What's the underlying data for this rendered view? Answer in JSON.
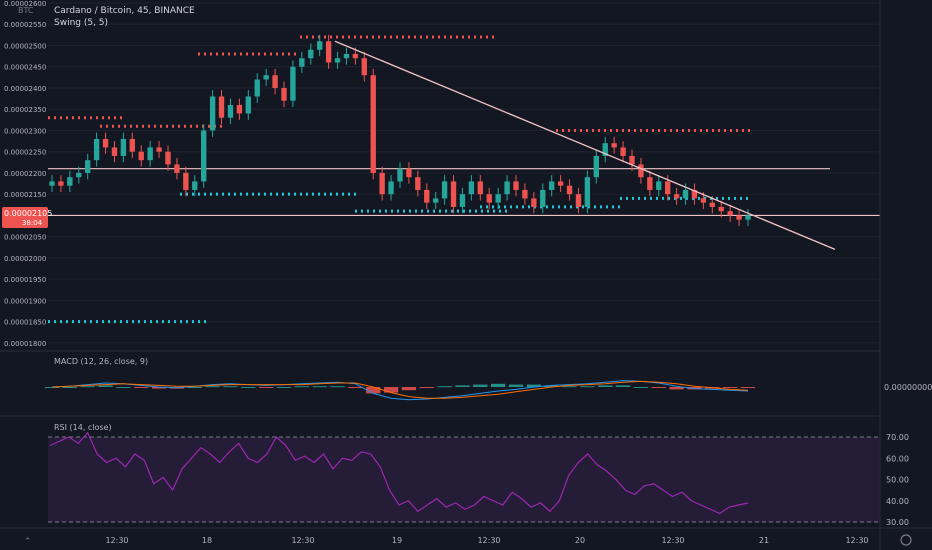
{
  "header": {
    "title": "Cardano / Bitcoin, 45, BINANCE",
    "indicator": "Swing (5, 5)",
    "currency": "BTC"
  },
  "price_panel": {
    "current_price": "0.00002105",
    "countdown": "38:04",
    "y_ticks": [
      "0.00002600",
      "0.00002550",
      "0.00002500",
      "0.00002450",
      "0.00002400",
      "0.00002350",
      "0.00002300",
      "0.00002250",
      "0.00002200",
      "0.00002150",
      "0.00002100",
      "0.00002050",
      "0.00002000",
      "0.00001950",
      "0.00001900",
      "0.00001850",
      "0.00001800"
    ]
  },
  "macd_panel": {
    "label": "MACD (12, 26, close, 9)",
    "value": "0.00000000"
  },
  "rsi_panel": {
    "label": "RSI (14, close)",
    "y_ticks": [
      "70.00",
      "60.00",
      "50.00",
      "40.00",
      "30.00"
    ]
  },
  "x_axis": {
    "ticks": [
      "12:30",
      "18",
      "12:30",
      "19",
      "12:30",
      "20",
      "12:30",
      "21",
      "12:30"
    ]
  },
  "colors": {
    "background": "#131722",
    "up": "#26a69a",
    "down": "#ef5350",
    "swing_high": "#ef5350",
    "swing_low": "#26c6da",
    "trendline": "#f0c4c4",
    "rsi": "#9c27b0",
    "rsi_band": "#2a1f3d",
    "macd": "#2196f3",
    "signal": "#ff6d00"
  },
  "chart_data": [
    {
      "type": "candlestick",
      "title": "Cardano / Bitcoin, 45, BINANCE",
      "ylim": [
        1.795e-05,
        2.6e-05
      ],
      "y_unit": "BTC",
      "closes": [
        2.18e-05,
        2.17e-05,
        2.19e-05,
        2.2e-05,
        2.23e-05,
        2.28e-05,
        2.26e-05,
        2.24e-05,
        2.28e-05,
        2.25e-05,
        2.23e-05,
        2.26e-05,
        2.25e-05,
        2.22e-05,
        2.2e-05,
        2.16e-05,
        2.18e-05,
        2.3e-05,
        2.38e-05,
        2.33e-05,
        2.36e-05,
        2.34e-05,
        2.38e-05,
        2.42e-05,
        2.43e-05,
        2.4e-05,
        2.37e-05,
        2.45e-05,
        2.47e-05,
        2.49e-05,
        2.51e-05,
        2.46e-05,
        2.47e-05,
        2.48e-05,
        2.47e-05,
        2.43e-05,
        2.2e-05,
        2.15e-05,
        2.18e-05,
        2.21e-05,
        2.19e-05,
        2.16e-05,
        2.13e-05,
        2.14e-05,
        2.18e-05,
        2.12e-05,
        2.15e-05,
        2.18e-05,
        2.15e-05,
        2.13e-05,
        2.15e-05,
        2.18e-05,
        2.16e-05,
        2.14e-05,
        2.12e-05,
        2.16e-05,
        2.18e-05,
        2.17e-05,
        2.15e-05,
        2.12e-05,
        2.19e-05,
        2.24e-05,
        2.27e-05,
        2.26e-05,
        2.24e-05,
        2.22e-05,
        2.19e-05,
        2.16e-05,
        2.18e-05,
        2.15e-05,
        2.14e-05,
        2.16e-05,
        2.14e-05,
        2.13e-05,
        2.12e-05,
        2.11e-05,
        2.1e-05,
        2.09e-05,
        2.1e-05
      ],
      "swing_high_levels": [
        2.33e-05,
        2.31e-05,
        2.48e-05,
        2.52e-05,
        2.3e-05
      ],
      "swing_low_levels": [
        2.15e-05,
        2.11e-05,
        2.12e-05,
        2.14e-05,
        1.85e-05
      ],
      "horizontal_levels": [
        2.21e-05,
        2.1e-05
      ],
      "trendline": {
        "from": [
          "18 12:30",
          2.51e-05
        ],
        "to": [
          "21 12:30",
          2.02e-05
        ]
      }
    },
    {
      "type": "line",
      "title": "MACD (12, 26, close, 9)",
      "series": [
        {
          "values": [
            0.0,
            0.1,
            0.3,
            0.5,
            0.4,
            0.2,
            0.0,
            -0.1,
            0.1,
            0.3,
            0.4,
            0.3,
            0.2,
            0.3,
            0.4,
            0.5,
            0.6,
            0.4,
            -0.8,
            -1.4,
            -1.6,
            -1.5,
            -1.3,
            -1.1,
            -0.8,
            -0.5,
            -0.3,
            0.0,
            0.2,
            0.3,
            0.4,
            0.6,
            0.8,
            0.7,
            0.5,
            0.1,
            -0.2,
            -0.3,
            -0.4,
            -0.5
          ]
        },
        {
          "values": [
            0.0,
            0.1,
            0.2,
            0.3,
            0.4,
            0.3,
            0.2,
            0.1,
            0.1,
            0.2,
            0.3,
            0.3,
            0.3,
            0.3,
            0.3,
            0.4,
            0.5,
            0.5,
            0.0,
            -0.7,
            -1.2,
            -1.4,
            -1.4,
            -1.3,
            -1.1,
            -0.9,
            -0.6,
            -0.3,
            0.0,
            0.2,
            0.3,
            0.4,
            0.6,
            0.7,
            0.6,
            0.4,
            0.1,
            -0.1,
            -0.3,
            -0.4
          ]
        }
      ]
    },
    {
      "type": "line",
      "title": "RSI (14, close)",
      "ylim": [
        25,
        75
      ],
      "series": [
        {
          "values": [
            66,
            68,
            70,
            67,
            72,
            62,
            58,
            60,
            56,
            62,
            59,
            48,
            51,
            45,
            55,
            60,
            65,
            62,
            58,
            63,
            67,
            60,
            58,
            62,
            70,
            66,
            59,
            61,
            58,
            62,
            55,
            60,
            59,
            63,
            62,
            56,
            45,
            38,
            40,
            35,
            38,
            41,
            37,
            39,
            36,
            38,
            42,
            40,
            38,
            44,
            41,
            37,
            39,
            35,
            40,
            52,
            58,
            62,
            57,
            54,
            50,
            45,
            43,
            47,
            48,
            45,
            42,
            44,
            40,
            38,
            36,
            34,
            37,
            38,
            39
          ]
        }
      ]
    }
  ]
}
